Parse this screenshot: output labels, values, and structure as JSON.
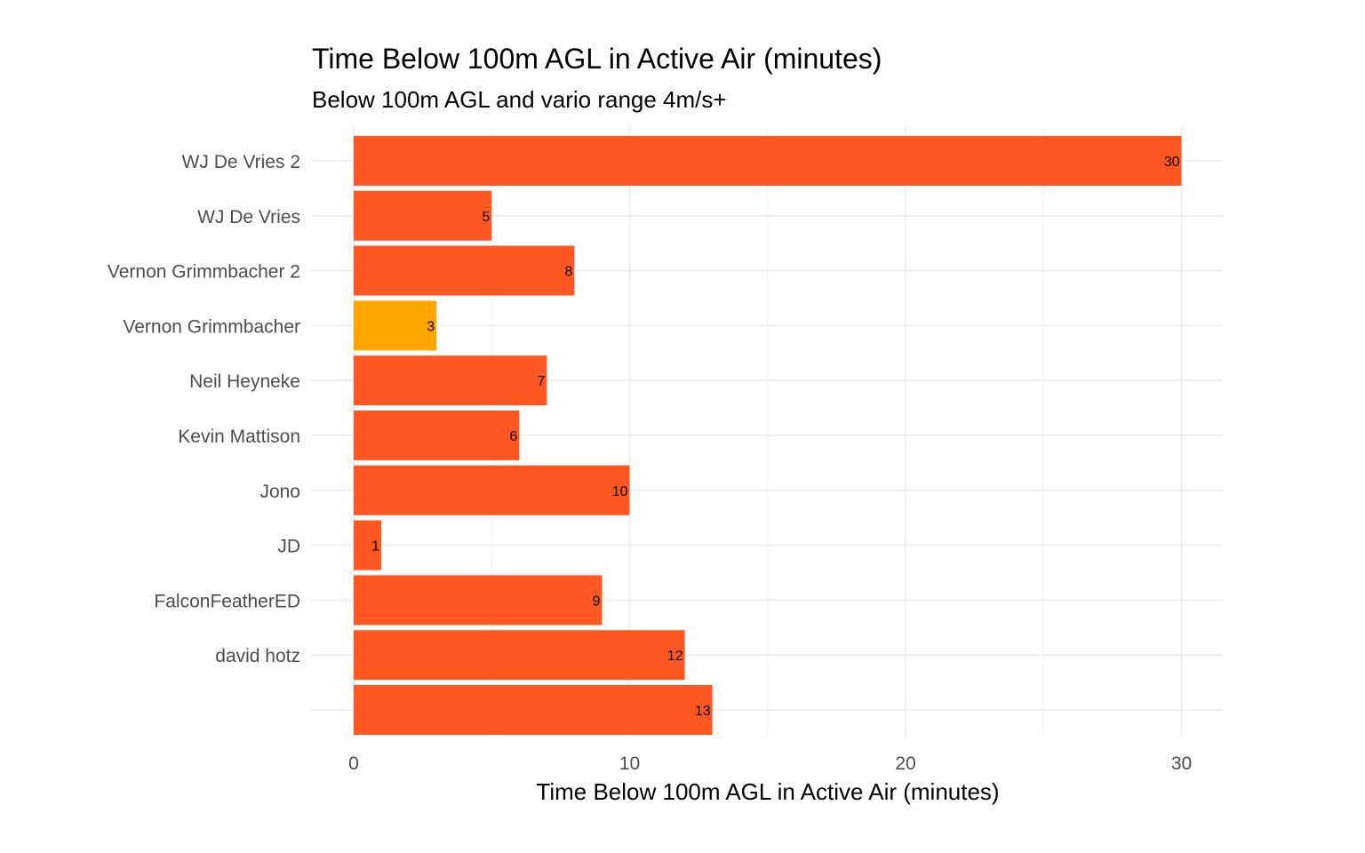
{
  "chart_data": {
    "type": "bar",
    "orientation": "horizontal",
    "title": "Time Below 100m AGL in Active Air (minutes)",
    "subtitle": "Below 100m AGL and vario range 4m/s+",
    "xlabel": "Time Below 100m AGL in Active Air (minutes)",
    "ylabel": "",
    "categories": [
      "WJ De Vries 2",
      "WJ De Vries",
      "Vernon Grimmbacher 2",
      "Vernon Grimmbacher",
      "Neil Heyneke",
      "Kevin Mattison",
      "Jono",
      "JD",
      "FalconFeatherED",
      "david hotz",
      ""
    ],
    "values": [
      30,
      5,
      8,
      3,
      7,
      6,
      10,
      1,
      9,
      12,
      13
    ],
    "highlight_index": 3,
    "colors": {
      "default": "#FF5722",
      "highlight": "#FFA500"
    },
    "xlim": [
      0,
      31.5
    ],
    "xticks": [
      0,
      10,
      20,
      30
    ],
    "grid": true,
    "legend": "none"
  }
}
